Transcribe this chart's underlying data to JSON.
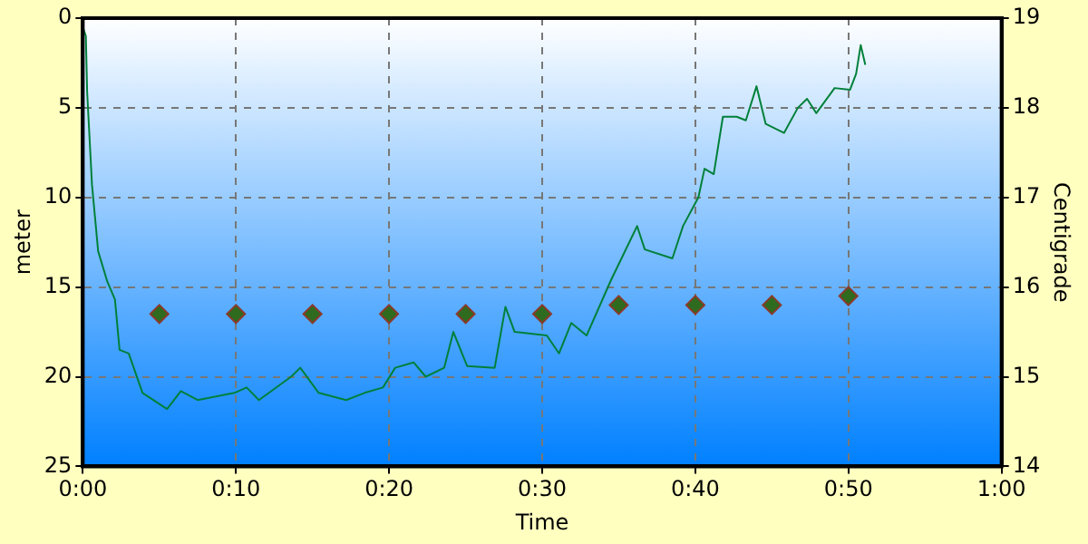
{
  "chart_data": {
    "type": "line",
    "xlabel": "Time",
    "ylabel": "meter",
    "y2label": "Centigrade",
    "xlim": [
      0,
      1
    ],
    "xticks": [
      {
        "value": 0,
        "label": "0:00"
      },
      {
        "value": 0.16667,
        "label": "0:10"
      },
      {
        "value": 0.33333,
        "label": "0:20"
      },
      {
        "value": 0.5,
        "label": "0:30"
      },
      {
        "value": 0.66667,
        "label": "0:40"
      },
      {
        "value": 0.83333,
        "label": "0:50"
      },
      {
        "value": 1,
        "label": "1:00"
      }
    ],
    "ylim": [
      25,
      0
    ],
    "yticks": [
      0,
      5,
      10,
      15,
      20,
      25
    ],
    "y2lim": [
      14,
      19
    ],
    "y2ticks": [
      14,
      15,
      16,
      17,
      18,
      19
    ],
    "grid": true,
    "legend": false,
    "series": [
      {
        "type": "line",
        "color": "#00803a",
        "marker": "none",
        "line_style": "solid",
        "x": [
          0,
          0.0033,
          0.0047,
          0.01,
          0.0167,
          0.0267,
          0.035,
          0.04,
          0.05,
          0.065,
          0.0917,
          0.1067,
          0.125,
          0.165,
          0.1783,
          0.1917,
          0.2267,
          0.2367,
          0.2567,
          0.2867,
          0.3067,
          0.3267,
          0.34,
          0.36,
          0.3733,
          0.3933,
          0.4033,
          0.4183,
          0.4483,
          0.46,
          0.47,
          0.505,
          0.5183,
          0.5317,
          0.5483,
          0.575,
          0.6033,
          0.6117,
          0.6417,
          0.6533,
          0.67,
          0.6767,
          0.6867,
          0.6967,
          0.7117,
          0.7217,
          0.7333,
          0.7433,
          0.7633,
          0.7783,
          0.7883,
          0.7983,
          0.8183,
          0.835,
          0.8417,
          0.8467,
          0.8517
        ],
        "values": [
          0.5,
          1,
          4.1,
          9.3,
          13,
          14.7,
          15.7,
          18.5,
          18.7,
          20.9,
          21.8,
          20.8,
          21.3,
          20.9,
          20.6,
          21.3,
          20,
          19.5,
          20.9,
          21.3,
          20.9,
          20.6,
          19.5,
          19.2,
          20,
          19.5,
          17.5,
          19.4,
          19.5,
          16.1,
          17.5,
          17.7,
          18.7,
          17,
          17.7,
          14.6,
          11.6,
          12.9,
          13.4,
          11.6,
          10,
          8.4,
          8.7,
          5.5,
          5.5,
          5.7,
          3.8,
          5.9,
          6.4,
          5,
          4.5,
          5.3,
          3.9,
          4,
          3.1,
          1.5,
          2.6
        ]
      },
      {
        "type": "scatter",
        "axis": "y2",
        "color": "#2e6b1e",
        "marker": "diamond",
        "x": [
          0.0833,
          0.1667,
          0.25,
          0.3333,
          0.4167,
          0.5,
          0.5833,
          0.6667,
          0.75,
          0.8333
        ],
        "values": [
          15.7,
          15.7,
          15.7,
          15.7,
          15.7,
          15.7,
          15.8,
          15.8,
          15.8,
          15.9
        ]
      }
    ]
  }
}
